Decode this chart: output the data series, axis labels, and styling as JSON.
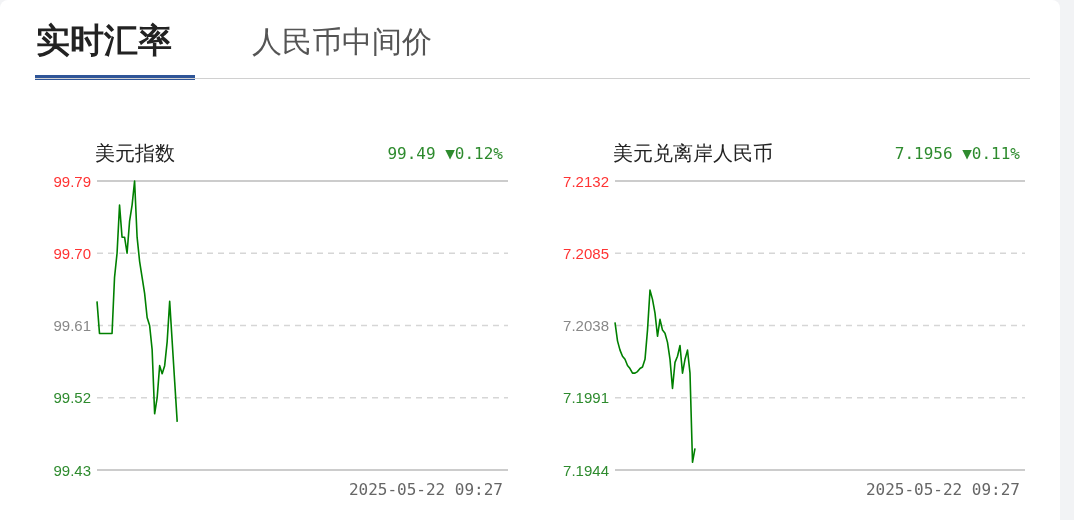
{
  "chart_data": [
    {
      "type": "other",
      "title": "实时汇率",
      "annotations": [
        "人民币中间价"
      ]
    },
    {
      "type": "line",
      "title": "美元指数",
      "subtitle": "99.49 ▼0.12%",
      "annotations": [
        "2025-05-22 09:27"
      ],
      "grid": "y",
      "ylim": [
        99.43,
        99.79
      ],
      "yticks": [
        99.43,
        99.52,
        99.61,
        {
          "value": 99.7,
          "label": "99.70"
        },
        99.79
      ],
      "categories": [
        null,
        null,
        null,
        null,
        null,
        null,
        null,
        null,
        null,
        null,
        null,
        null,
        null,
        null,
        null,
        null,
        null,
        null,
        null,
        null,
        null,
        null,
        null,
        null,
        null,
        null,
        null,
        null,
        null,
        null,
        null,
        null,
        null,
        null,
        null,
        null,
        null,
        null,
        null,
        null,
        null,
        null,
        null,
        null,
        null,
        null,
        null,
        null,
        null,
        null,
        null,
        null,
        null,
        null,
        null,
        null,
        null,
        null,
        null,
        null,
        null,
        null,
        null,
        null,
        null,
        null,
        null,
        null,
        null,
        null,
        null,
        null,
        null,
        null,
        null,
        null,
        null,
        null,
        null,
        null,
        null,
        null,
        null,
        null,
        null,
        null,
        null,
        null,
        null,
        null,
        null,
        null,
        null,
        null,
        null,
        null,
        null,
        null,
        null,
        null,
        null,
        null,
        null,
        null,
        null,
        null,
        null,
        null,
        null,
        null,
        null,
        null,
        null,
        null,
        null,
        null,
        null,
        null,
        null,
        null,
        null,
        null,
        null,
        null,
        null,
        null,
        null,
        null,
        null,
        null,
        null,
        null,
        null,
        null,
        null,
        null,
        null,
        null,
        null,
        null,
        null,
        null,
        null,
        null,
        null,
        null,
        null,
        null,
        null,
        null,
        null,
        null,
        null,
        null,
        null,
        null,
        null,
        null,
        null,
        null,
        null,
        null,
        null,
        null,
        null
      ],
      "series": [
        {
          "color": "#008000",
          "values": [
            99.64,
            99.6,
            99.6,
            99.6,
            99.6,
            99.6,
            99.6,
            99.67,
            99.7,
            99.76,
            99.72,
            99.72,
            99.7,
            99.74,
            99.76,
            99.79,
            99.72,
            99.69,
            99.67,
            99.65,
            99.62,
            99.61,
            99.58,
            99.5,
            99.52,
            99.56,
            99.55,
            99.56,
            99.59,
            99.64,
            99.59,
            99.54,
            99.49,
            null,
            null,
            null,
            null,
            null,
            null,
            null,
            null,
            null,
            null,
            null,
            null,
            null,
            null,
            null,
            null,
            null,
            null,
            null,
            null,
            null,
            null,
            null,
            null,
            null,
            null,
            null,
            null,
            null,
            null,
            null,
            null,
            null,
            null,
            null,
            null,
            null,
            null,
            null,
            null,
            null,
            null,
            null,
            null,
            null,
            null,
            null,
            null,
            null,
            null,
            null,
            null,
            null,
            null,
            null,
            null,
            null,
            null,
            null,
            null,
            null,
            null,
            null,
            null,
            null,
            null,
            null,
            null,
            null,
            null,
            null,
            null,
            null,
            null,
            null,
            null,
            null,
            null,
            null,
            null,
            null,
            null,
            null,
            null,
            null,
            null,
            null,
            null,
            null,
            null,
            null,
            null,
            null,
            null,
            null,
            null,
            null,
            null,
            null,
            null,
            null,
            null,
            null,
            null,
            null,
            null,
            null,
            null,
            null,
            null,
            null,
            null,
            null,
            null,
            null,
            null,
            null,
            null,
            null,
            null,
            null,
            null,
            null,
            null,
            null,
            null,
            null,
            null,
            null,
            null,
            null,
            null
          ]
        }
      ]
    },
    {
      "type": "line",
      "title": "美元兑离岸人民币",
      "subtitle": "7.1956 ▼0.11%",
      "annotations": [
        "2025-05-22 09:27"
      ],
      "grid": "y",
      "ylim": [
        7.1944,
        7.2132
      ],
      "yticks": [
        7.1944,
        7.1991,
        7.2038,
        7.2085,
        7.2132
      ],
      "categories": [
        null,
        null,
        null,
        null,
        null,
        null,
        null,
        null,
        null,
        null,
        null,
        null,
        null,
        null,
        null,
        null,
        null,
        null,
        null,
        null,
        null,
        null,
        null,
        null,
        null,
        null,
        null,
        null,
        null,
        null,
        null,
        null,
        null,
        null,
        null,
        null,
        null,
        null,
        null,
        null,
        null,
        null,
        null,
        null,
        null,
        null,
        null,
        null,
        null,
        null,
        null,
        null,
        null,
        null,
        null,
        null,
        null,
        null,
        null,
        null,
        null,
        null,
        null,
        null,
        null,
        null,
        null,
        null,
        null,
        null,
        null,
        null,
        null,
        null,
        null,
        null,
        null,
        null,
        null,
        null,
        null,
        null,
        null,
        null,
        null,
        null,
        null,
        null,
        null,
        null,
        null,
        null,
        null,
        null,
        null,
        null,
        null,
        null,
        null,
        null,
        null,
        null,
        null,
        null,
        null,
        null,
        null,
        null,
        null,
        null,
        null,
        null,
        null,
        null,
        null,
        null,
        null,
        null,
        null,
        null,
        null,
        null,
        null,
        null,
        null,
        null,
        null,
        null,
        null,
        null,
        null,
        null,
        null,
        null,
        null,
        null,
        null,
        null,
        null,
        null,
        null,
        null,
        null,
        null,
        null,
        null,
        null,
        null,
        null,
        null,
        null,
        null,
        null,
        null,
        null,
        null,
        null,
        null,
        null,
        null,
        null,
        null,
        null,
        null,
        null
      ],
      "series": [
        {
          "color": "#008000",
          "values": [
            7.204,
            7.2028,
            7.2022,
            7.2018,
            7.2016,
            7.2012,
            7.201,
            7.2007,
            7.2007,
            7.2008,
            7.201,
            7.2011,
            7.2016,
            7.2035,
            7.2061,
            7.2055,
            7.2046,
            7.2031,
            7.2042,
            7.2035,
            7.2033,
            7.2027,
            7.2016,
            7.1997,
            7.2014,
            7.2018,
            7.2025,
            7.2007,
            7.2016,
            7.2022,
            7.2007,
            7.1949,
            7.1958,
            null,
            null,
            null,
            null,
            null,
            null,
            null,
            null,
            null,
            null,
            null,
            null,
            null,
            null,
            null,
            null,
            null,
            null,
            null,
            null,
            null,
            null,
            null,
            null,
            null,
            null,
            null,
            null,
            null,
            null,
            null,
            null,
            null,
            null,
            null,
            null,
            null,
            null,
            null,
            null,
            null,
            null,
            null,
            null,
            null,
            null,
            null,
            null,
            null,
            null,
            null,
            null,
            null,
            null,
            null,
            null,
            null,
            null,
            null,
            null,
            null,
            null,
            null,
            null,
            null,
            null,
            null,
            null,
            null,
            null,
            null,
            null,
            null,
            null,
            null,
            null,
            null,
            null,
            null,
            null,
            null,
            null,
            null,
            null,
            null,
            null,
            null,
            null,
            null,
            null,
            null,
            null,
            null,
            null,
            null,
            null,
            null,
            null,
            null,
            null,
            null,
            null,
            null,
            null,
            null,
            null,
            null,
            null,
            null,
            null,
            null,
            null,
            null,
            null,
            null,
            null,
            null,
            null,
            null,
            null,
            null,
            null,
            null,
            null,
            null,
            null,
            null,
            null,
            null,
            null,
            null,
            null
          ]
        }
      ]
    }
  ]
}
